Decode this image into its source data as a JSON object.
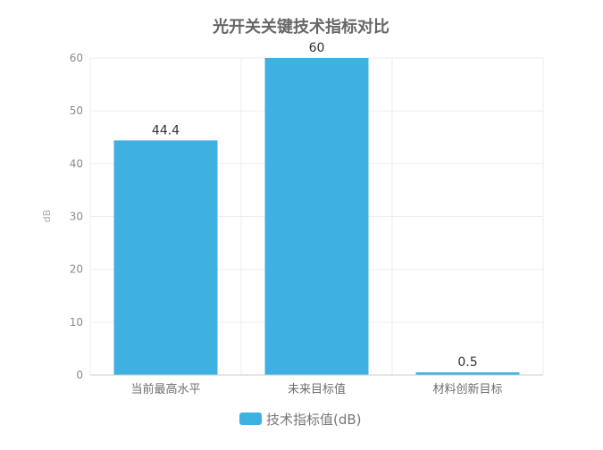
{
  "chart_data": {
    "type": "bar",
    "title": "光开关关键技术指标对比",
    "categories": [
      "当前最高水平",
      "未来目标值",
      "材料创新目标"
    ],
    "series": [
      {
        "name": "技术指标值(dB)",
        "values": [
          44.4,
          60,
          0.5
        ]
      }
    ],
    "data_labels": [
      "44.4",
      "60",
      "0.5"
    ],
    "ylabel": "dB",
    "xlabel": "",
    "ylim": [
      0,
      60
    ],
    "yticks": [
      0,
      10,
      20,
      30,
      40,
      50,
      60
    ],
    "grid": true,
    "legend_position": "bottom",
    "colors": {
      "bar": "#3eb1e2",
      "grid": "#eeeeee",
      "axis": "#cccccc"
    }
  }
}
